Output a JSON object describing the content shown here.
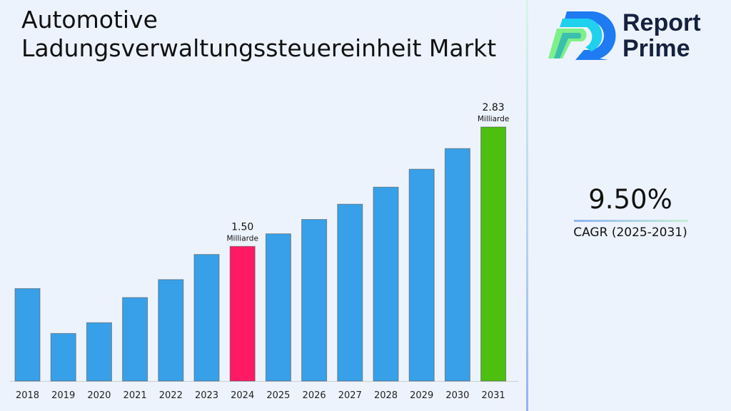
{
  "title": "Automotive\nLadungsverwaltungssteuereinheit Markt",
  "logo": {
    "text_line1": "Report",
    "text_line2": "Prime"
  },
  "cagr": {
    "value": "9.50%",
    "label": "CAGR (2025-2031)"
  },
  "chart_data": {
    "type": "bar",
    "title": "Automotive Ladungsverwaltungssteuereinheit Markt",
    "categories": [
      "2018",
      "2019",
      "2020",
      "2021",
      "2022",
      "2023",
      "2024",
      "2025",
      "2026",
      "2027",
      "2028",
      "2029",
      "2030",
      "2031"
    ],
    "values": [
      1.03,
      0.53,
      0.65,
      0.93,
      1.13,
      1.41,
      1.5,
      1.64,
      1.8,
      1.97,
      2.16,
      2.36,
      2.59,
      2.83
    ],
    "unit": "Milliarde",
    "data_labels": {
      "2024": "1.50",
      "2031": "2.83"
    },
    "colors": {
      "default": "#38a0e8",
      "2024": "#ff1a66",
      "2031": "#4cbf0f"
    },
    "ylim": [
      0,
      2.83
    ],
    "grid": false,
    "legend": "none"
  }
}
